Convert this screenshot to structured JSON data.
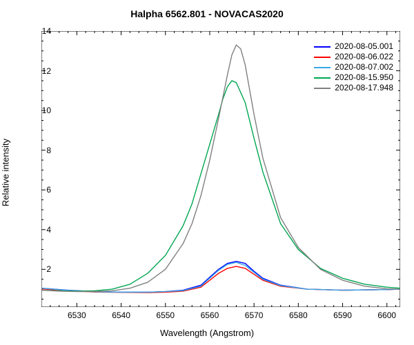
{
  "chart": {
    "type": "line",
    "title": "Halpha 6562.801 - NOVACAS2020",
    "xlabel": "Wavelength (Angstrom)",
    "ylabel": "Relative intensity",
    "background_color": "#ffffff",
    "axis_color": "#000000",
    "title_fontsize": 14,
    "label_fontsize": 13,
    "tick_fontsize": 12,
    "xlim": [
      6522,
      6603
    ],
    "ylim": [
      0.1,
      14
    ],
    "xticks": [
      6530,
      6540,
      6550,
      6560,
      6570,
      6580,
      6590,
      6600
    ],
    "yticks": [
      2,
      4,
      6,
      8,
      10,
      12,
      14
    ],
    "x_minor_step": 2,
    "y_minor_step": 0.5,
    "legend_position": "top-right",
    "line_width": 1.4,
    "series": [
      {
        "label": "2020-08-05.001",
        "color": "#0000ff",
        "x": [
          6522,
          6528,
          6534,
          6540,
          6546,
          6550,
          6554,
          6558,
          6560,
          6562,
          6564,
          6566,
          6568,
          6570,
          6572,
          6576,
          6582,
          6590,
          6600,
          6603
        ],
        "y": [
          1.05,
          0.95,
          0.88,
          0.85,
          0.85,
          0.88,
          0.95,
          1.2,
          1.6,
          2.0,
          2.3,
          2.4,
          2.3,
          1.9,
          1.55,
          1.2,
          1.0,
          0.95,
          0.98,
          1.0
        ]
      },
      {
        "label": "2020-08-06.022",
        "color": "#ff0000",
        "x": [
          6522,
          6528,
          6534,
          6540,
          6546,
          6550,
          6554,
          6558,
          6560,
          6562,
          6564,
          6566,
          6568,
          6570,
          6572,
          6576,
          6582,
          6590,
          6600,
          6603
        ],
        "y": [
          1.02,
          0.92,
          0.86,
          0.84,
          0.83,
          0.85,
          0.9,
          1.1,
          1.45,
          1.8,
          2.05,
          2.15,
          2.05,
          1.75,
          1.45,
          1.15,
          1.0,
          0.95,
          0.98,
          1.0
        ]
      },
      {
        "label": "2020-08-07.002",
        "color": "#37a6e6",
        "x": [
          6522,
          6528,
          6534,
          6540,
          6546,
          6550,
          6554,
          6558,
          6560,
          6562,
          6564,
          6566,
          6568,
          6570,
          6572,
          6576,
          6582,
          6590,
          6600,
          6603
        ],
        "y": [
          1.05,
          0.94,
          0.87,
          0.85,
          0.85,
          0.88,
          0.93,
          1.15,
          1.55,
          1.95,
          2.25,
          2.35,
          2.2,
          1.85,
          1.5,
          1.18,
          1.0,
          0.95,
          0.98,
          1.0
        ]
      },
      {
        "label": "2020-08-15.950",
        "color": "#00a651",
        "x": [
          6522,
          6526,
          6530,
          6534,
          6538,
          6542,
          6546,
          6550,
          6554,
          6556,
          6558,
          6560,
          6562,
          6563,
          6564,
          6565,
          6566,
          6568,
          6570,
          6572,
          6576,
          6580,
          6585,
          6590,
          6595,
          6600,
          6603
        ],
        "y": [
          0.95,
          0.92,
          0.9,
          0.92,
          1.0,
          1.25,
          1.8,
          2.7,
          4.2,
          5.3,
          6.8,
          8.3,
          9.8,
          10.6,
          11.2,
          11.5,
          11.4,
          10.4,
          8.6,
          6.9,
          4.3,
          3.0,
          2.05,
          1.55,
          1.25,
          1.1,
          1.05
        ]
      },
      {
        "label": "2020-08-17.948",
        "color": "#808080",
        "x": [
          6522,
          6526,
          6530,
          6534,
          6538,
          6542,
          6546,
          6550,
          6554,
          6556,
          6558,
          6560,
          6562,
          6564,
          6565,
          6566,
          6567,
          6568,
          6570,
          6572,
          6576,
          6580,
          6585,
          6590,
          6595,
          6600,
          6603
        ],
        "y": [
          0.95,
          0.9,
          0.88,
          0.88,
          0.92,
          1.05,
          1.35,
          2.0,
          3.3,
          4.3,
          5.7,
          7.5,
          9.6,
          11.8,
          12.8,
          13.3,
          13.1,
          12.3,
          9.8,
          7.6,
          4.6,
          3.1,
          2.0,
          1.45,
          1.15,
          1.02,
          1.0
        ]
      }
    ]
  }
}
